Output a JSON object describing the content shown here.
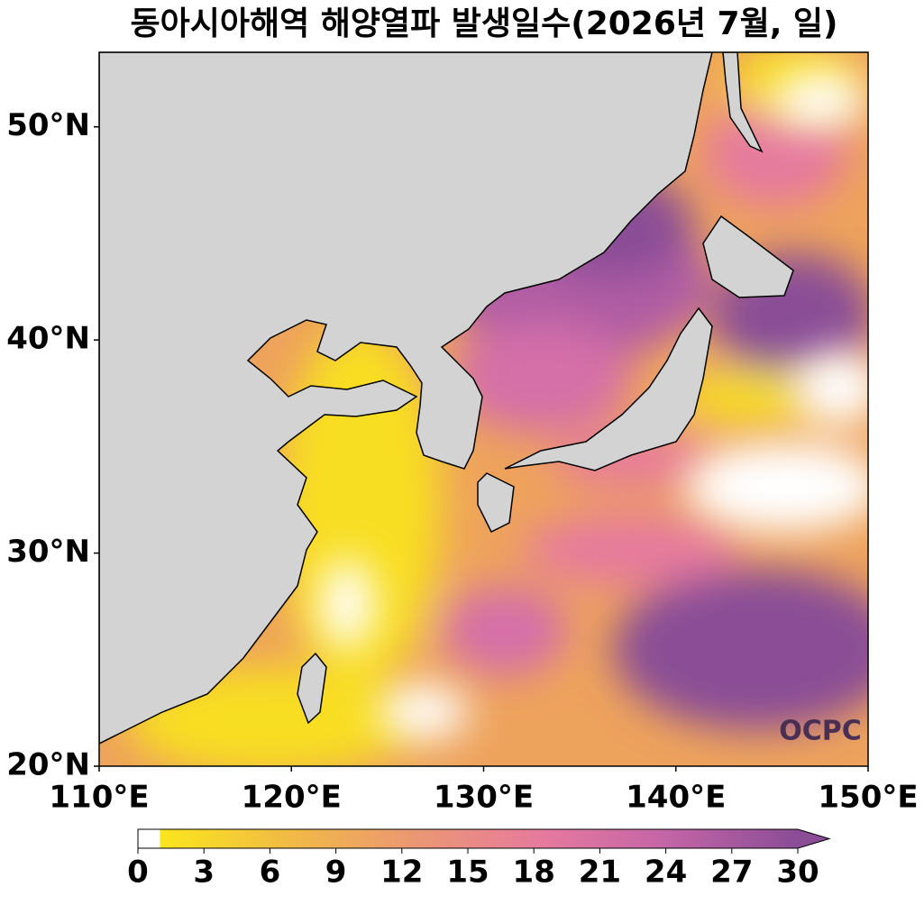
{
  "title": "동아시아해역 해양열파 발생일수(2026년 7월, 일)",
  "map": {
    "xlim": [
      110,
      150
    ],
    "ylim": [
      20,
      53.5
    ],
    "xticks": [
      {
        "value": 110,
        "label": "110°E"
      },
      {
        "value": 120,
        "label": "120°E"
      },
      {
        "value": 130,
        "label": "130°E"
      },
      {
        "value": 140,
        "label": "140°E"
      },
      {
        "value": 150,
        "label": "150°E"
      }
    ],
    "yticks": [
      {
        "value": 20,
        "label": "20°N"
      },
      {
        "value": 30,
        "label": "30°N"
      },
      {
        "value": 40,
        "label": "40°N"
      },
      {
        "value": 50,
        "label": "50°N"
      }
    ],
    "land_color": "#d3d3d3"
  },
  "colorbar": {
    "range": [
      0,
      30
    ],
    "ticks": [
      0,
      3,
      6,
      9,
      12,
      15,
      18,
      21,
      24,
      27,
      30
    ],
    "colors": [
      "#ffffff",
      "#fae61c",
      "#f1bb45",
      "#eb9773",
      "#e67a9e",
      "#c264a6",
      "#8a4d96"
    ]
  },
  "logo": "OCPC"
}
